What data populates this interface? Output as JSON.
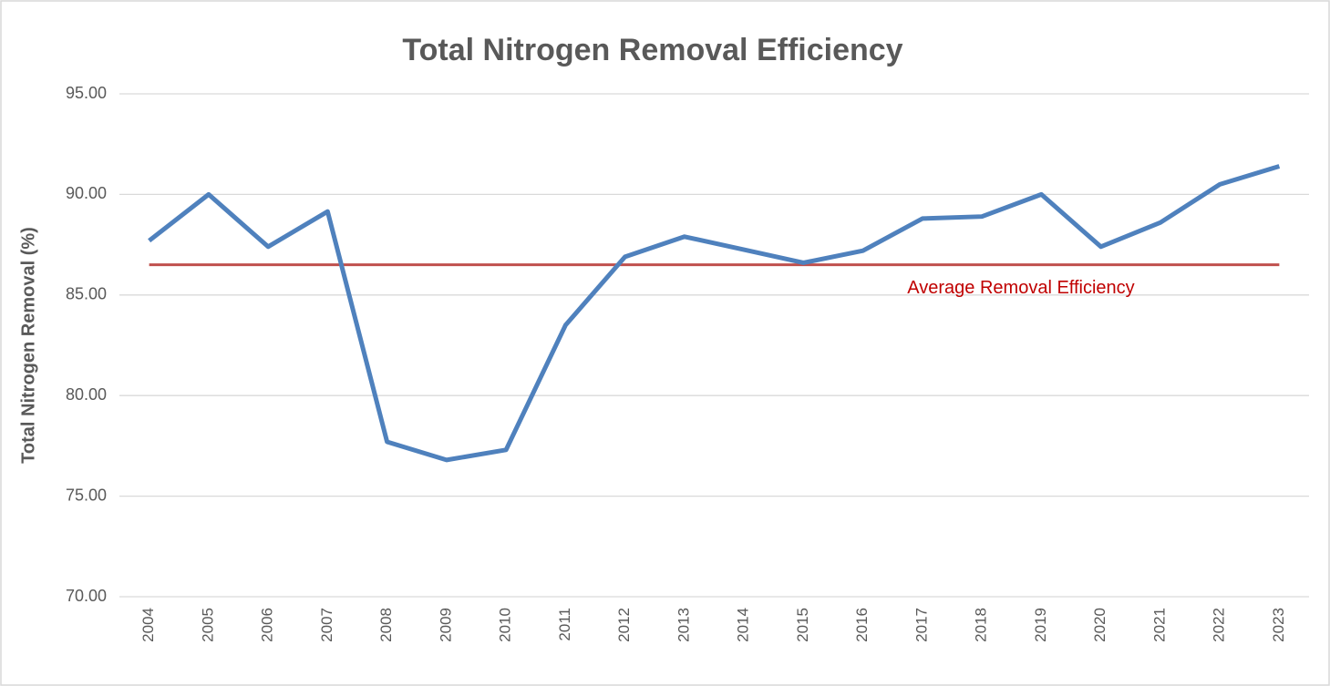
{
  "chart_data": {
    "type": "line",
    "title": "Total Nitrogen Removal Efficiency",
    "y_label": "Total Nitrogen Removal (%)",
    "categories": [
      "2004",
      "2005",
      "2006",
      "2007",
      "2008",
      "2009",
      "2010",
      "2011",
      "2012",
      "2013",
      "2014",
      "2015",
      "2016",
      "2017",
      "2018",
      "2019",
      "2020",
      "2021",
      "2022",
      "2023"
    ],
    "series": [
      {
        "color": "#4f81bd",
        "values": [
          87.7,
          90.0,
          87.4,
          89.15,
          77.7,
          76.8,
          77.3,
          83.5,
          86.9,
          87.9,
          87.25,
          86.6,
          87.2,
          88.8,
          88.9,
          90.0,
          87.4,
          88.6,
          90.5,
          91.4
        ]
      }
    ],
    "reference_line": {
      "value": 86.5,
      "label": "Average Removal Efficiency",
      "color": "#c0504d",
      "label_color": "#c00000"
    },
    "ylim": [
      70,
      95
    ],
    "yticks": [
      {
        "value": 70,
        "label": "70.00"
      },
      {
        "value": 75,
        "label": "75.00"
      },
      {
        "value": 80,
        "label": "80.00"
      },
      {
        "value": 85,
        "label": "85.00"
      },
      {
        "value": 90,
        "label": "90.00"
      },
      {
        "value": 95,
        "label": "95.00"
      }
    ],
    "grid": true
  }
}
